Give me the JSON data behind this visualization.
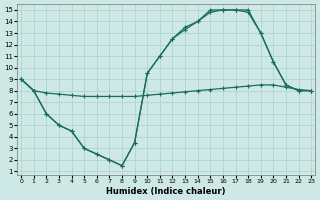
{
  "background_color": "#cde8e5",
  "grid_color": "#aed4d0",
  "line_color": "#1a6b60",
  "xlim_min": -0.3,
  "xlim_max": 23.3,
  "ylim_min": 0.7,
  "ylim_max": 15.5,
  "xticks": [
    0,
    1,
    2,
    3,
    4,
    5,
    6,
    7,
    8,
    9,
    10,
    11,
    12,
    13,
    14,
    15,
    16,
    17,
    18,
    19,
    20,
    21,
    22,
    23
  ],
  "yticks": [
    1,
    2,
    3,
    4,
    5,
    6,
    7,
    8,
    9,
    10,
    11,
    12,
    13,
    14,
    15
  ],
  "xlabel": "Humidex (Indice chaleur)",
  "curve1_x": [
    0,
    1,
    2,
    3,
    4,
    5,
    6,
    7,
    8,
    9,
    10,
    11,
    12,
    13,
    14,
    15,
    16,
    17,
    18,
    19,
    20,
    21,
    22,
    23
  ],
  "curve1_y": [
    9,
    8,
    7.8,
    7.7,
    7.6,
    7.5,
    7.5,
    7.5,
    7.5,
    7.5,
    7.6,
    7.7,
    7.8,
    7.9,
    8.0,
    8.1,
    8.2,
    8.3,
    8.4,
    8.5,
    8.5,
    8.3,
    8.1,
    8.0
  ],
  "curve2_x": [
    0,
    1,
    2,
    3,
    4,
    5,
    6,
    7,
    8,
    9,
    10,
    11,
    12,
    13,
    14,
    15,
    16,
    17,
    18,
    19,
    20,
    21,
    22,
    23
  ],
  "curve2_y": [
    9,
    8,
    6,
    5,
    4.5,
    3,
    2.5,
    2,
    1.5,
    3.5,
    9.5,
    11,
    12.5,
    13.5,
    14.0,
    15,
    15,
    15,
    15,
    13,
    10.5,
    8.5,
    8,
    8
  ],
  "curve3_x": [
    0,
    1,
    2,
    3,
    4,
    5,
    6,
    7,
    8,
    9,
    10,
    11,
    12,
    13,
    14,
    15,
    16,
    17,
    18,
    19,
    20,
    21,
    22,
    23
  ],
  "curve3_y": [
    9,
    8,
    6,
    5,
    4.5,
    3,
    2.5,
    2,
    1.5,
    3.5,
    9.5,
    11,
    12.5,
    13.3,
    14.0,
    14.8,
    15.0,
    15.0,
    14.8,
    13,
    10.5,
    8.5,
    8,
    8
  ]
}
